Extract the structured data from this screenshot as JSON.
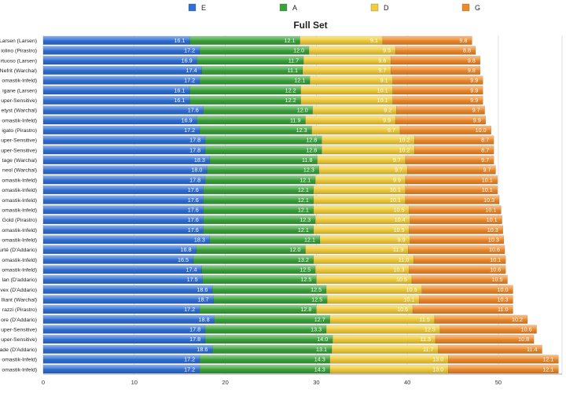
{
  "chart_data": {
    "type": "bar",
    "orientation": "horizontal",
    "stacked": true,
    "title": "Full Set",
    "xlabel": "",
    "ylabel": "",
    "xlim": [
      0,
      57
    ],
    "xticks": [
      0,
      10,
      20,
      30,
      40,
      50
    ],
    "grid": true,
    "legend": {
      "placement": "top-center"
    },
    "categories": [
      "Larsen (Larsen)",
      "iolino (Pirastro)",
      "rtuoso (Larsen)",
      "Nefrit (Warchal)",
      "omastik-Infeld)",
      "igane (Larsen)",
      "uper-Sensitive)",
      "etyst (Warchal)",
      "omastik-Infeld)",
      "igato (Pirastro)",
      "uper-Sensitive)",
      "uper-Sensitive)",
      "tage (Warchal)",
      "neol (Warchal)",
      "omastik-Infeld)",
      "omastik-Infeld)",
      "omastik-Infeld)",
      "omastik-Infeld)",
      "Gold (Pirastro)",
      "omastik-Infeld)",
      "omastik-Infeld)",
      "urté (D'Addario)",
      "omastik-Infeld)",
      "omastik-Infeld)",
      "lan (D'addario)",
      "vex (D'Addario)",
      "lliant (Warchal)",
      "razzi (Pirastro)",
      "ore (D'Addario)",
      "uper-Sensitive)",
      "uper-Sensitive)",
      "ade (D'Addario)",
      "omastik-Infeld)",
      "omastik-Infeld)"
    ],
    "series": [
      {
        "name": "E",
        "color": "#2f6fd6",
        "values": [
          16.1,
          17.2,
          16.9,
          17.4,
          17.2,
          16.1,
          16.1,
          17.6,
          16.9,
          17.2,
          17.8,
          17.8,
          18.3,
          18.0,
          17.8,
          17.6,
          17.6,
          17.6,
          17.6,
          17.6,
          18.3,
          16.8,
          16.5,
          17.4,
          17.5,
          18.6,
          18.7,
          17.2,
          18.8,
          17.8,
          17.8,
          18.6,
          17.2,
          17.2
        ]
      },
      {
        "name": "A",
        "color": "#3aa33a",
        "values": [
          12.1,
          12.0,
          11.7,
          11.1,
          12.1,
          12.2,
          12.2,
          12.0,
          11.9,
          12.3,
          12.8,
          12.8,
          11.8,
          12.3,
          12.1,
          12.1,
          12.1,
          12.1,
          12.3,
          12.1,
          12.1,
          12.0,
          13.2,
          12.5,
          12.5,
          12.5,
          12.5,
          12.8,
          12.7,
          13.3,
          14.0,
          13.1,
          14.3,
          14.3
        ]
      },
      {
        "name": "D",
        "color": "#f2cd3b",
        "values": [
          9.1,
          9.5,
          9.6,
          9.7,
          9.1,
          10.1,
          10.1,
          9.2,
          9.9,
          9.7,
          10.2,
          10.2,
          9.7,
          9.7,
          9.9,
          10.1,
          10.1,
          10.5,
          10.4,
          10.5,
          9.9,
          11.3,
          11.0,
          10.3,
          10.5,
          10.5,
          10.1,
          10.6,
          11.5,
          12.5,
          11.3,
          11.7,
          13.0,
          13.0
        ]
      },
      {
        "name": "G",
        "color": "#ef8a2a",
        "values": [
          9.8,
          8.8,
          9.8,
          9.8,
          9.9,
          9.9,
          9.9,
          9.7,
          9.9,
          10.0,
          8.7,
          8.7,
          9.7,
          9.7,
          10.1,
          10.1,
          10.3,
          10.1,
          10.1,
          10.3,
          10.3,
          10.6,
          10.1,
          10.6,
          10.5,
          10.0,
          10.3,
          11.0,
          10.2,
          10.6,
          10.8,
          11.4,
          12.1,
          12.1
        ]
      }
    ]
  }
}
